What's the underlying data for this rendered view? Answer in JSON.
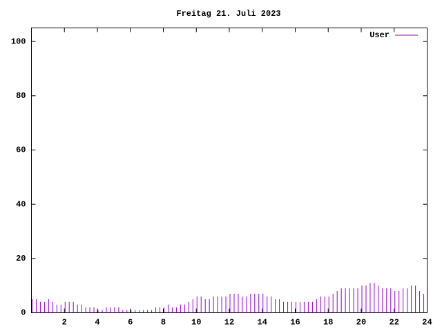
{
  "chart_data": {
    "type": "impulse",
    "title": "Freitag 21. Juli 2023",
    "x": [
      0,
      0.25,
      0.5,
      0.75,
      1,
      1.25,
      1.5,
      1.75,
      2,
      2.25,
      2.5,
      2.75,
      3,
      3.25,
      3.5,
      3.75,
      4,
      4.25,
      4.5,
      4.75,
      5,
      5.25,
      5.5,
      5.75,
      6,
      6.25,
      6.5,
      6.75,
      7,
      7.25,
      7.5,
      7.75,
      8,
      8.25,
      8.5,
      8.75,
      9,
      9.25,
      9.5,
      9.75,
      10,
      10.25,
      10.5,
      10.75,
      11,
      11.25,
      11.5,
      11.75,
      12,
      12.25,
      12.5,
      12.75,
      13,
      13.25,
      13.5,
      13.75,
      14,
      14.25,
      14.5,
      14.75,
      15,
      15.25,
      15.5,
      15.75,
      16,
      16.25,
      16.5,
      16.75,
      17,
      17.25,
      17.5,
      17.75,
      18,
      18.25,
      18.5,
      18.75,
      19,
      19.25,
      19.5,
      19.75,
      20,
      20.25,
      20.5,
      20.75,
      21,
      21.25,
      21.5,
      21.75,
      22,
      22.25,
      22.5,
      22.75,
      23,
      23.25,
      23.5,
      23.75
    ],
    "series": [
      {
        "name": "User",
        "color": "#9400d3",
        "values": [
          5,
          5,
          4,
          4,
          5,
          4,
          3,
          3,
          4,
          4,
          4,
          3,
          3,
          2,
          2,
          2,
          1,
          1,
          2,
          2,
          2,
          2,
          1,
          1,
          1,
          1,
          1,
          1,
          1,
          1,
          2,
          2,
          2,
          3,
          2,
          2,
          3,
          3,
          4,
          5,
          6,
          6,
          5,
          5,
          6,
          6,
          6,
          6,
          7,
          7,
          7,
          6,
          6,
          7,
          7,
          7,
          7,
          6,
          6,
          5,
          5,
          4,
          4,
          4,
          4,
          4,
          4,
          4,
          4,
          5,
          6,
          6,
          6,
          7,
          8,
          9,
          9,
          9,
          9,
          9,
          10,
          10,
          11,
          11,
          10,
          9,
          9,
          9,
          8,
          8,
          9,
          9,
          10,
          10,
          8,
          7
        ]
      }
    ],
    "xlim": [
      0,
      24
    ],
    "xticks": [
      2,
      4,
      6,
      8,
      10,
      12,
      14,
      16,
      18,
      20,
      22,
      24
    ],
    "ylim": [
      0,
      105
    ],
    "yticks": [
      0,
      20,
      40,
      60,
      80,
      100
    ],
    "legend": "top-right"
  }
}
